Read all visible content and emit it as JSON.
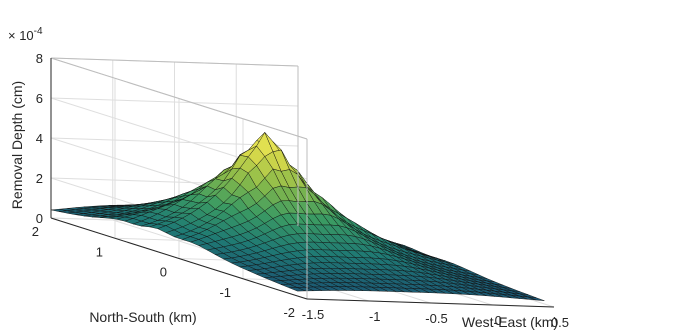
{
  "chart_data": {
    "type": "surface",
    "title": "",
    "xlabel": "West-East (km)",
    "ylabel": "North-South (km)",
    "zlabel": "Removal Depth (cm)",
    "z_exponent_label": "× 10",
    "z_exponent_power": "-4",
    "x_ticks": [
      "-1.5",
      "-1",
      "-0.5",
      "0",
      "0.5"
    ],
    "y_ticks": [
      "-2",
      "-1",
      "0",
      "1",
      "2"
    ],
    "z_ticks": [
      "0",
      "2",
      "4",
      "6",
      "8"
    ],
    "xlim": [
      -1.5,
      0.5
    ],
    "ylim": [
      -2,
      2
    ],
    "zlim": [
      0,
      8
    ],
    "grid": true,
    "colormap": [
      "#1b4f72",
      "#1f7a74",
      "#3a9a63",
      "#86b94a",
      "#d6d84a",
      "#f4ee5a"
    ],
    "peak": {
      "x": -0.62,
      "y": 0.35,
      "z": 6.2
    }
  }
}
